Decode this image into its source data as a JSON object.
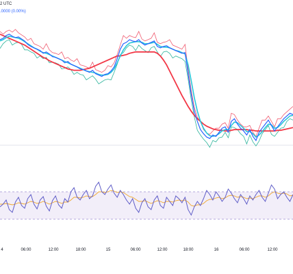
{
  "legend": {
    "line1": "2 UTC",
    "line2": ".0000 (0.00%)"
  },
  "colors": {
    "price": "#2962ff",
    "fast_ma": "#26c6da",
    "slow_ma": "#f23645",
    "band_upper": "#ef5a6f",
    "band_lower": "#2bb39a",
    "oscillator": "#5e5cc7",
    "oscillator_signal": "#f0a82e",
    "oscillator_band_fill": "#ede7f6",
    "oscillator_band_border": "#9c8fd1",
    "panel_separator": "#e0e3eb"
  },
  "time_axis": {
    "labels": [
      "4",
      "06:00",
      "12:00",
      "18:00",
      "15",
      "06:00",
      "12:00",
      "18:00",
      "16",
      "06:00",
      "12:00"
    ]
  },
  "chart_data": {
    "type": "line",
    "series": [
      {
        "name": "",
        "values": [
          60,
          58,
          54,
          52,
          55,
          57,
          56,
          59,
          62,
          67,
          70,
          72,
          74,
          76,
          80,
          78,
          81,
          85,
          86,
          88,
          90,
          94,
          92,
          96,
          98,
          100,
          103,
          104,
          106,
          108,
          105,
          110,
          112,
          114,
          111,
          110,
          106,
          100,
          88,
          74,
          66,
          64,
          60,
          62,
          63,
          60,
          65,
          68,
          66,
          64,
          62,
          70,
          72,
          70,
          69,
          72,
          74,
          76,
          78,
          80,
          79,
          110,
          140,
          165,
          180,
          192,
          198,
          203,
          205,
          200,
          202,
          196,
          190,
          188,
          196,
          180,
          176,
          184,
          190,
          194,
          200,
          192,
          202,
          208,
          196,
          190,
          184,
          178,
          186,
          194,
          188,
          182,
          176,
          172,
          168,
          170
        ]
      },
      {
        "name": "",
        "values": [
          62,
          60,
          57,
          55,
          56,
          57,
          58,
          60,
          63,
          66,
          69,
          72,
          74,
          77,
          79,
          80,
          82,
          84,
          86,
          88,
          90,
          92,
          94,
          96,
          98,
          100,
          102,
          104,
          106,
          107,
          108,
          109,
          111,
          112,
          112,
          111,
          108,
          103,
          94,
          84,
          75,
          69,
          65,
          64,
          63,
          63,
          64,
          66,
          66,
          65,
          64,
          67,
          70,
          71,
          71,
          72,
          74,
          76,
          77,
          79,
          81,
          97,
          120,
          145,
          165,
          180,
          190,
          197,
          201,
          202,
          201,
          198,
          194,
          192,
          192,
          186,
          181,
          182,
          186,
          190,
          195,
          195,
          198,
          203,
          200,
          195,
          189,
          184,
          185,
          190,
          189,
          185,
          180,
          176,
          172,
          171
        ]
      },
      {
        "name": "",
        "values": [
          52,
          54,
          56,
          58,
          60,
          62,
          64,
          66,
          68,
          71,
          74,
          77,
          80,
          83,
          86,
          88,
          91,
          93,
          95,
          97,
          99,
          101,
          103,
          104,
          105,
          105,
          105,
          104,
          103,
          102,
          100,
          98,
          96,
          94,
          92,
          90,
          88,
          86,
          84,
          84,
          83,
          82,
          80,
          79,
          78,
          78,
          78,
          78,
          78,
          78,
          78,
          80,
          84,
          90,
          97,
          106,
          115,
          124,
          133,
          142,
          150,
          158,
          165,
          171,
          176,
          180,
          184,
          187,
          189,
          191,
          192,
          193,
          193,
          194,
          194,
          193,
          192,
          192,
          192,
          192,
          192,
          193,
          193,
          194,
          194,
          194,
          194,
          194,
          194,
          194,
          193,
          193,
          192,
          191,
          190,
          189
        ]
      }
    ],
    "indicator": {
      "type": "line",
      "series": [
        {
          "name": "",
          "values": [
            48,
            52,
            58,
            44,
            40,
            55,
            62,
            50,
            46,
            60,
            66,
            52,
            45,
            58,
            63,
            49,
            42,
            57,
            64,
            51,
            46,
            60,
            55,
            70,
            76,
            62,
            58,
            66,
            72,
            60,
            64,
            78,
            84,
            70,
            66,
            74,
            80,
            68,
            62,
            72,
            66,
            58,
            52,
            60,
            46,
            40,
            54,
            60,
            48,
            44,
            58,
            64,
            50,
            46,
            62,
            56,
            50,
            64,
            60,
            54,
            62,
            44,
            36,
            48,
            56,
            50,
            60,
            72,
            66,
            58,
            70,
            64,
            56,
            62,
            74,
            68,
            60,
            54,
            66,
            60,
            52,
            64,
            58,
            66,
            72,
            62,
            56,
            68,
            80,
            74,
            60,
            66,
            70,
            62,
            56,
            66
          ]
        },
        {
          "name": "",
          "values": [
            52,
            52,
            53,
            52,
            51,
            52,
            54,
            53,
            52,
            54,
            56,
            55,
            53,
            54,
            56,
            54,
            52,
            54,
            56,
            55,
            53,
            55,
            55,
            58,
            62,
            62,
            61,
            62,
            64,
            63,
            63,
            66,
            70,
            70,
            69,
            70,
            72,
            71,
            69,
            70,
            69,
            66,
            63,
            62,
            59,
            56,
            56,
            57,
            55,
            53,
            55,
            57,
            56,
            54,
            56,
            56,
            55,
            57,
            58,
            57,
            58,
            55,
            50,
            49,
            51,
            51,
            53,
            57,
            59,
            59,
            61,
            62,
            60,
            61,
            64,
            65,
            64,
            62,
            63,
            62,
            60,
            61,
            60,
            62,
            64,
            64,
            62,
            64,
            68,
            70,
            68,
            67,
            68,
            67,
            64,
            65
          ]
        }
      ],
      "band": [
        30,
        70
      ],
      "ylim": [
        0,
        100
      ]
    }
  }
}
